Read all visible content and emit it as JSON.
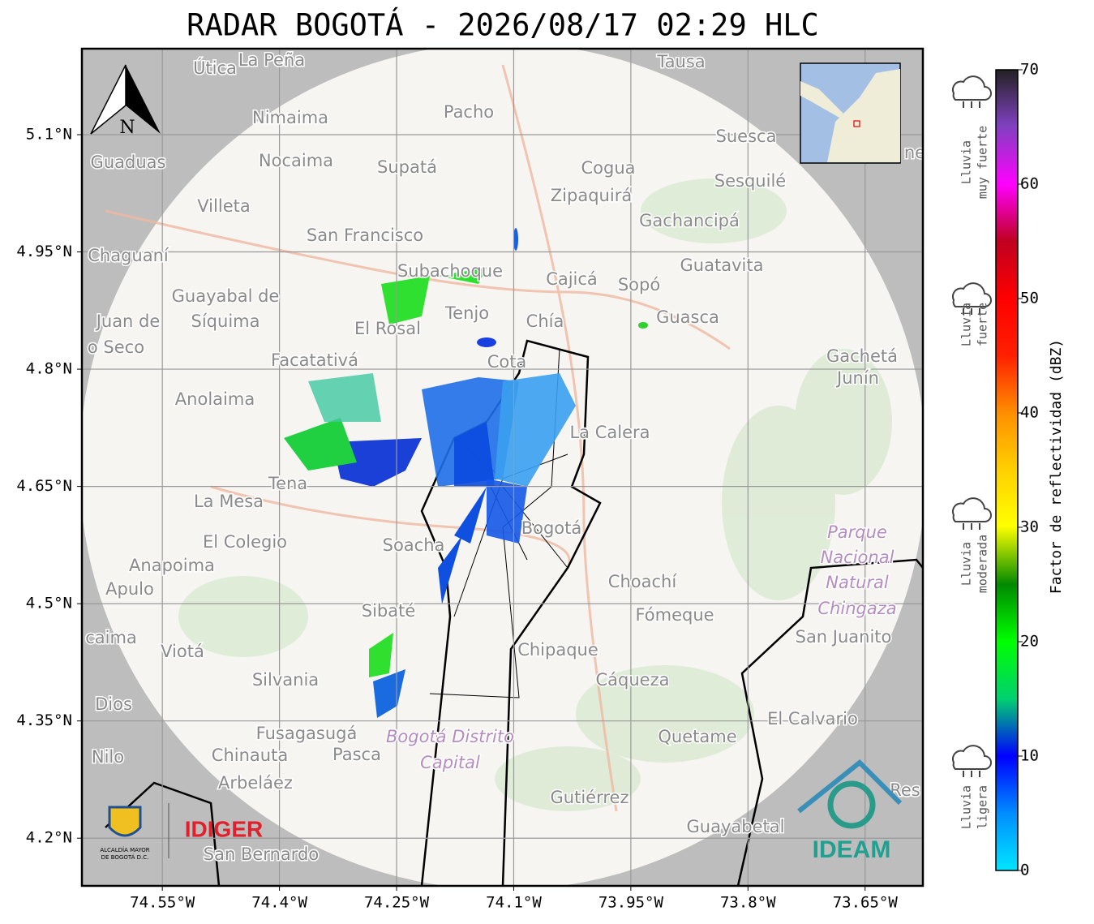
{
  "title": "RADAR BOGOTÁ - 2026/08/17 02:29 HLC",
  "map": {
    "xlim": [
      -74.653,
      -73.576
    ],
    "ylim": [
      4.139,
      5.21
    ],
    "xticks": [
      {
        "value": -74.55,
        "label": "74.55°W"
      },
      {
        "value": -74.4,
        "label": "74.4°W"
      },
      {
        "value": -74.25,
        "label": "74.25°W"
      },
      {
        "value": -74.1,
        "label": "74.1°W"
      },
      {
        "value": -73.95,
        "label": "73.95°W"
      },
      {
        "value": -73.8,
        "label": "73.8°W"
      },
      {
        "value": -73.65,
        "label": "73.65°W"
      }
    ],
    "yticks": [
      {
        "value": 5.1,
        "label": "5.1°N"
      },
      {
        "value": 4.95,
        "label": "4.95°N"
      },
      {
        "value": 4.8,
        "label": "4.8°N"
      },
      {
        "value": 4.65,
        "label": "4.65°N"
      },
      {
        "value": 4.5,
        "label": "4.5°N"
      },
      {
        "value": 4.35,
        "label": "4.35°N"
      },
      {
        "value": 4.2,
        "label": "4.2°N"
      }
    ],
    "north": "N",
    "places": [
      "Útica",
      "La Peña",
      "Tausa",
      "Pacho",
      "Nimaima",
      "Guaduas",
      "Nocaima",
      "Supatá",
      "Cogua",
      "Suesca",
      "Sesquilé",
      "Zipaquirá",
      "Villeta",
      "Gachancipá",
      "San Francisco",
      "Chaguaní",
      "Guatavita",
      "Subachoque",
      "Cajicá",
      "Sopó",
      "Guayabal de",
      "Síquima",
      "Tenjo",
      "Juan de",
      "El Rosal",
      "Chía",
      "Guasca",
      "o Seco",
      "Facatativá",
      "Cota",
      "Gachetá",
      "Junín",
      "Anolaima",
      "La Calera",
      "Tena",
      "La Mesa",
      "Bogotá",
      "El Colegio",
      "Soacha",
      "Anapoima",
      "Apulo",
      "Choachí",
      "Sibaté",
      "Fómeque",
      "caima",
      "Viotá",
      "San Juanito",
      "Chipaque",
      "Silvania",
      "Cáqueza",
      "Dios",
      "El Calvario",
      "Fusagasugá",
      "Quetame",
      "Nilo",
      "Chinauta",
      "Pasca",
      "Arbeláez",
      "Gutiérrez",
      "Res",
      "Guayabetal",
      "San Bernardo",
      "ne"
    ],
    "areas": [
      "Parque",
      "Nacional",
      "Natural",
      "Chingaza",
      "Bogotá Distrito",
      "Capital"
    ]
  },
  "colorbar": {
    "label": "Factor de reflectividad (dBZ)",
    "lim": [
      0,
      70
    ],
    "ticks": [
      0,
      10,
      20,
      30,
      40,
      50,
      60,
      70
    ]
  },
  "rain_levels": [
    [
      "Lluvia",
      "muy fuerte"
    ],
    [
      "Lluvia",
      "fuerte"
    ],
    [
      "Lluvia",
      "moderada"
    ],
    [
      "Lluvia",
      "ligera"
    ]
  ],
  "logos": {
    "alcaldia": [
      "ALCALDÍA MAYOR",
      "DE BOGOTÁ D.C."
    ],
    "idiger": "IDIGER",
    "ideam": "IDEAM"
  }
}
